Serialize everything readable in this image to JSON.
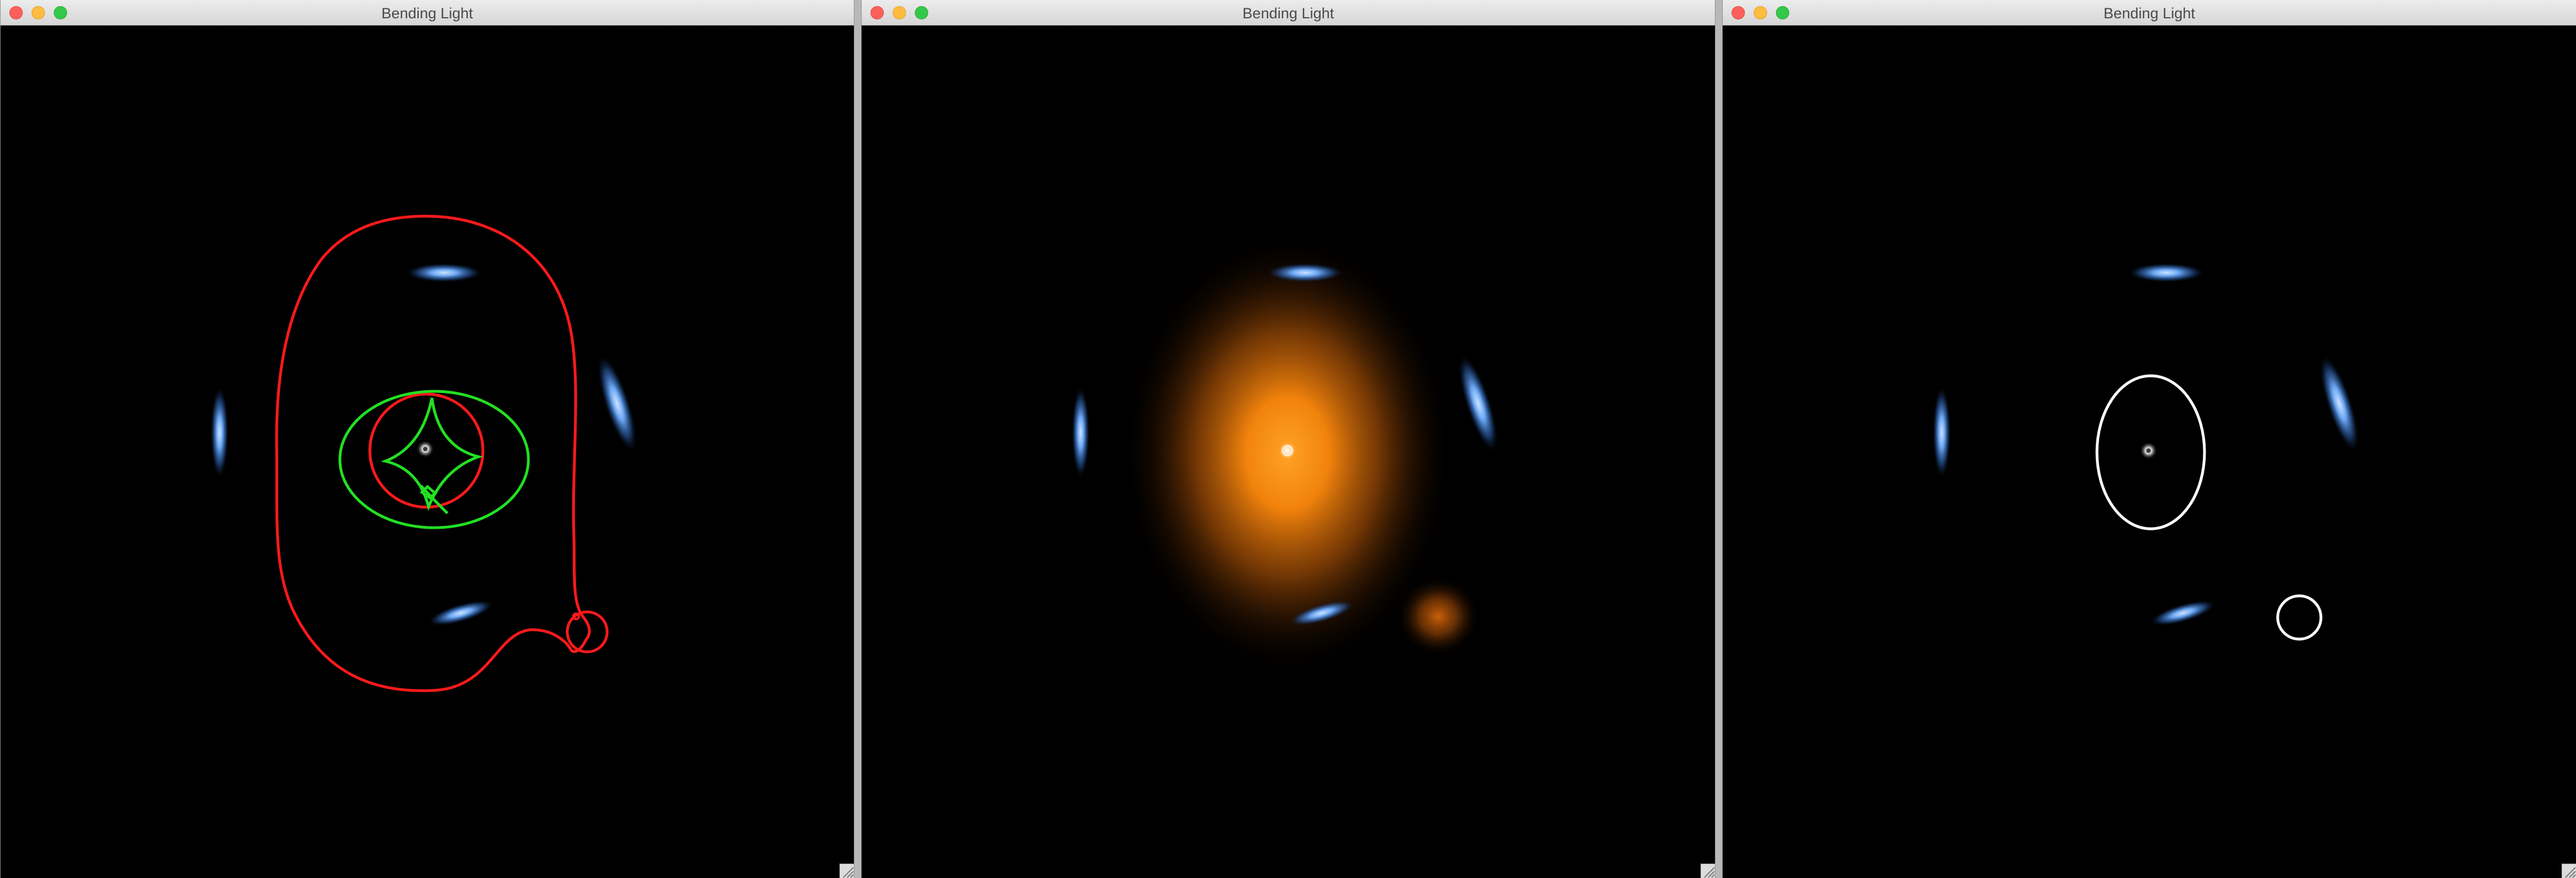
{
  "windows": [
    {
      "title": "Bending Light",
      "view": "critical-curves-and-caustics"
    },
    {
      "title": "Bending Light",
      "view": "lens-light-profile"
    },
    {
      "title": "Bending Light",
      "view": "source-outlines"
    }
  ],
  "colors": {
    "background": "#000000",
    "critical_curve": "#ff1a1a",
    "caustic": "#22e022",
    "lensed_arc": "#7fb6ff",
    "lens_glow": "#ff8a10",
    "outline": "#ffffff"
  }
}
